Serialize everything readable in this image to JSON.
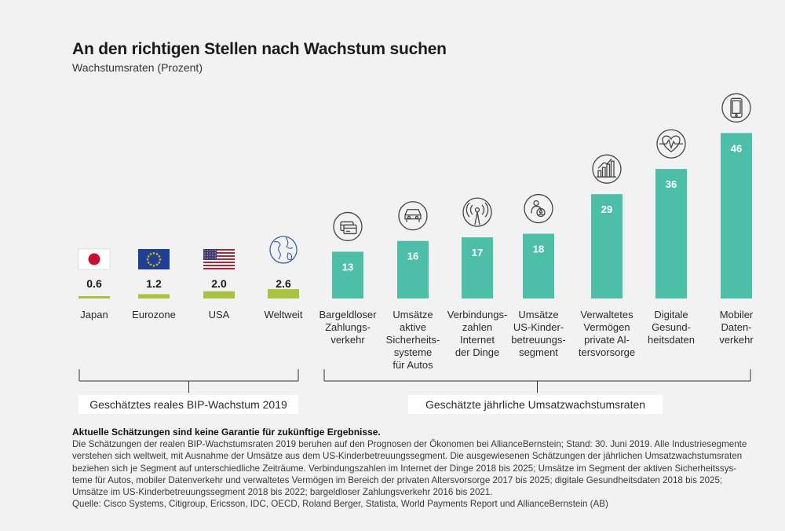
{
  "title": "An den richtigen Stellen nach Wachstum suchen",
  "subtitle": "Wachstumsraten (Prozent)",
  "chart_data": {
    "type": "bar",
    "title": "An den richtigen Stellen nach Wachstum suchen",
    "ylabel": "Wachstumsraten (Prozent)",
    "ylim": [
      0,
      46
    ],
    "groups": [
      {
        "name": "Geschätztes reales BIP-Wachstum 2019",
        "color": "#a9c23f",
        "categories": [
          "Japan",
          "Eurozone",
          "USA",
          "Weltweit"
        ],
        "values": [
          0.6,
          1.2,
          2.0,
          2.6
        ],
        "value_labels": [
          "0.6",
          "1.2",
          "2.0",
          "2.6"
        ],
        "icons": [
          "japan-flag-icon",
          "eu-flag-icon",
          "usa-flag-icon",
          "globe-icon"
        ]
      },
      {
        "name": "Geschätzte jährliche Umsatzwachstumsraten",
        "color": "#4dbfa8",
        "categories": [
          [
            "Bargeldloser",
            "Zahlungs-",
            "verkehr"
          ],
          [
            "Umsätze",
            "aktive",
            "Sicherheits-",
            "systeme",
            "für Autos"
          ],
          [
            "Verbindungs-",
            "zahlen",
            "Internet",
            "der Dinge"
          ],
          [
            "Umsätze",
            "US-Kinder-",
            "betreuungs-",
            "segment"
          ],
          [
            "Verwaltetes",
            "Vermögen",
            "private Al-",
            "tersvorsorge"
          ],
          [
            "Digitale",
            "Gesund-",
            "heitsdaten"
          ],
          [
            "Mobiler",
            "Daten-",
            "verkehr"
          ]
        ],
        "values": [
          13,
          16,
          17,
          18,
          29,
          36,
          46
        ],
        "value_labels": [
          "13",
          "16",
          "17",
          "18",
          "29",
          "36",
          "46"
        ],
        "icons": [
          "credit-card-icon",
          "car-icon",
          "iot-signal-icon",
          "childcare-icon",
          "bar-growth-icon",
          "heart-rate-icon",
          "smartphone-icon"
        ]
      }
    ]
  },
  "notes": {
    "heading": "Aktuelle Schätzungen sind keine Garantie für zukünftige Ergebnisse.",
    "lines": [
      "Die Schätzungen der realen BIP-Wachstumsraten 2019 beruhen auf den Prognosen der Ökonomen bei AllianceBernstein; Stand: 30. Juni 2019. Alle Industriesegmente",
      "verstehen sich weltweit, mit Ausnahme der Umsätze aus dem US-Kinderbetreuungssegment. Die ausgewiesenen Schätzungen der jährlichen Umsatzwachstumsraten",
      "beziehen sich je Segment auf unterschiedliche Zeiträume. Verbindungszahlen im Internet der Dinge 2018 bis 2025; Umsätze im Segment der aktiven Sicherheitssys-",
      "teme für Autos, mobiler Datenverkehr und verwaltetes Vermögen im Bereich der privaten Altersvorsorge 2017 bis 2025; digitale Gesundheitsdaten 2018 bis 2025;",
      "Umsätze im US-Kinderbetreuungssegment 2018 bis 2022; bargeldloser Zahlungsverkehr 2016 bis 2021.",
      "Quelle: Cisco Systems, Citigroup, Ericsson, IDC, OECD, Roland Berger, Statista, World Payments Report und AllianceBernstein (AB)"
    ]
  }
}
